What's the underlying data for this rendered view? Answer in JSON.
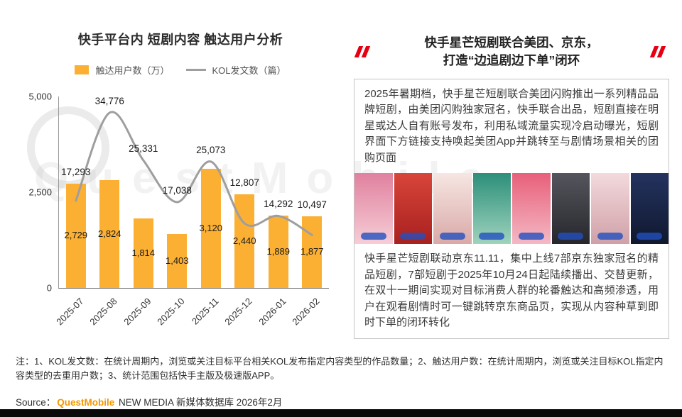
{
  "page_title": "快手平台内 短剧内容 触达用户分析",
  "chart_data": {
    "type": "combo",
    "title": "快手平台内 短剧内容 触达用户分析",
    "categories": [
      "2025-07",
      "2025-08",
      "2025-09",
      "2025-10",
      "2025-11",
      "2025-12",
      "2026-01",
      "2026-02"
    ],
    "series": [
      {
        "name": "触达用户数（万）",
        "type": "bar",
        "color": "#FBB034",
        "values": [
          2729,
          2824,
          1814,
          1403,
          3120,
          2440,
          1889,
          1877
        ]
      },
      {
        "name": "KOL发文数（篇）",
        "type": "line",
        "color": "#9E9E9E",
        "values": [
          17293,
          34776,
          25331,
          17038,
          25073,
          12807,
          14292,
          10497
        ]
      }
    ],
    "y_axis": {
      "min": 0,
      "max": 5000,
      "ticks": [
        "5,000",
        "2,500",
        "0"
      ]
    },
    "line_scale_max": 38000,
    "grid": false,
    "legend_position": "top",
    "xlabel": "",
    "ylabel": ""
  },
  "right_panel": {
    "title_line1": "快手星芒短剧联合美团、京东，",
    "title_line2": "打造“边追剧边下单”闭环",
    "para1": "2025年暑期档，快手星芒短剧联合美团闪购推出一系列精品品牌短剧，由美团闪购独家冠名，快手联合出品，短剧直接在明星或达人自有账号发布，利用私域流量实现冷启动曝光，短剧界面下方链接支持唤起美团App并跳转至与剧情场景相关的团购页面",
    "para2": "快手星芒短剧联动京东11.11，集中上线7部京东独家冠名的精品短剧，7部短剧于2025年10月24日起陆续播出、交替更新，在双十一期间实现对目标消费人群的轮番触达和高频渗透，用户在观看剧情时可一键跳转京东商品页，实现从内容种草到即时下单的闭环转化",
    "posters": [
      {
        "top": "#e0819f",
        "bottom": "#f6cdd6"
      },
      {
        "top": "#d8453a",
        "bottom": "#a8201f"
      },
      {
        "top": "#f6e6e2",
        "bottom": "#d9a9a8"
      },
      {
        "top": "#2c8f7a",
        "bottom": "#9fd3bd"
      },
      {
        "top": "#e8607a",
        "bottom": "#f4b8c4"
      },
      {
        "top": "#55555d",
        "bottom": "#26262c"
      },
      {
        "top": "#f3dadc",
        "bottom": "#cfa0a8"
      },
      {
        "top": "#24335f",
        "bottom": "#10182f"
      }
    ]
  },
  "notes": "注：1、KOL发文数：在统计周期内，浏览或关注目标平台相关KOL发布指定内容类型的作品数量；2、触达用户数：在统计周期内，浏览或关注目标KOL指定内容类型的去重用户数；3、统计范围包括快手主版及极速版APP。",
  "source": {
    "prefix": "Source：",
    "brand": "QuestMobile",
    "suffix": " NEW MEDIA 新媒体数据库 2026年2月"
  },
  "watermark_text": "QuestMobile",
  "colors": {
    "bar": "#FBB034",
    "line": "#9E9E9E",
    "accent_red": "#E60012",
    "brand_orange": "#F39800"
  }
}
